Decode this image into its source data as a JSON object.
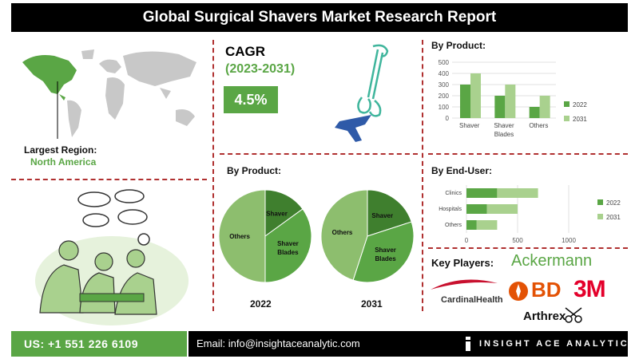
{
  "title": "Global Surgical Shavers Market Research Report",
  "region": {
    "label": "Largest Region:",
    "value": "North America"
  },
  "cagr": {
    "label": "CAGR",
    "period": "(2023-2031)",
    "value": "4.5%"
  },
  "colors": {
    "green_dark": "#5aa645",
    "green_light": "#a9d18e",
    "divider": "#b03030",
    "map_gray": "#c8c8c8"
  },
  "pie_section": {
    "title": "By Product:"
  },
  "key_players": {
    "title": "Key Players:",
    "names": [
      "Ackermann",
      "CardinalHealth",
      "BD",
      "3M",
      "Arthrex"
    ]
  },
  "footer": {
    "phone": "US: +1 551 226 6109",
    "email": "Email: info@insightaceanalytic.com",
    "brand": "INSIGHT ACE ANALYTIC"
  },
  "chart_data": [
    {
      "type": "bar",
      "title": "By Product:",
      "categories": [
        "Shaver",
        "Shaver Blades",
        "Others"
      ],
      "series": [
        {
          "name": "2022",
          "values": [
            300,
            200,
            100
          ],
          "color": "#5aa645"
        },
        {
          "name": "2031",
          "values": [
            400,
            300,
            200
          ],
          "color": "#a9d18e"
        }
      ],
      "ylim": [
        0,
        500
      ],
      "yticks": [
        "0",
        "100",
        "200",
        "300",
        "400",
        "500"
      ],
      "grid": true,
      "legend": "right"
    },
    {
      "type": "bar",
      "orientation": "horizontal",
      "title": "By End-User:",
      "categories": [
        "Clinics",
        "Hospitals",
        "Others"
      ],
      "series": [
        {
          "name": "2022",
          "values": [
            300,
            200,
            100
          ],
          "color": "#5aa645"
        },
        {
          "name": "2031",
          "values": [
            400,
            300,
            200
          ],
          "color": "#a9d18e"
        }
      ],
      "xlim": [
        0,
        1000
      ],
      "xticks": [
        "0",
        "500",
        "1000"
      ],
      "legend": "right"
    },
    {
      "type": "pie",
      "title": "2022",
      "labels": [
        "Shaver",
        "Shaver Blades",
        "Others"
      ],
      "values": [
        15,
        35,
        50
      ],
      "colors": [
        "#3f7f2e",
        "#5aa645",
        "#8dbe6e"
      ]
    },
    {
      "type": "pie",
      "title": "2031",
      "labels": [
        "Shaver",
        "Shaver Blades",
        "Others"
      ],
      "values": [
        20,
        35,
        45
      ],
      "colors": [
        "#3f7f2e",
        "#5aa645",
        "#8dbe6e"
      ]
    }
  ]
}
